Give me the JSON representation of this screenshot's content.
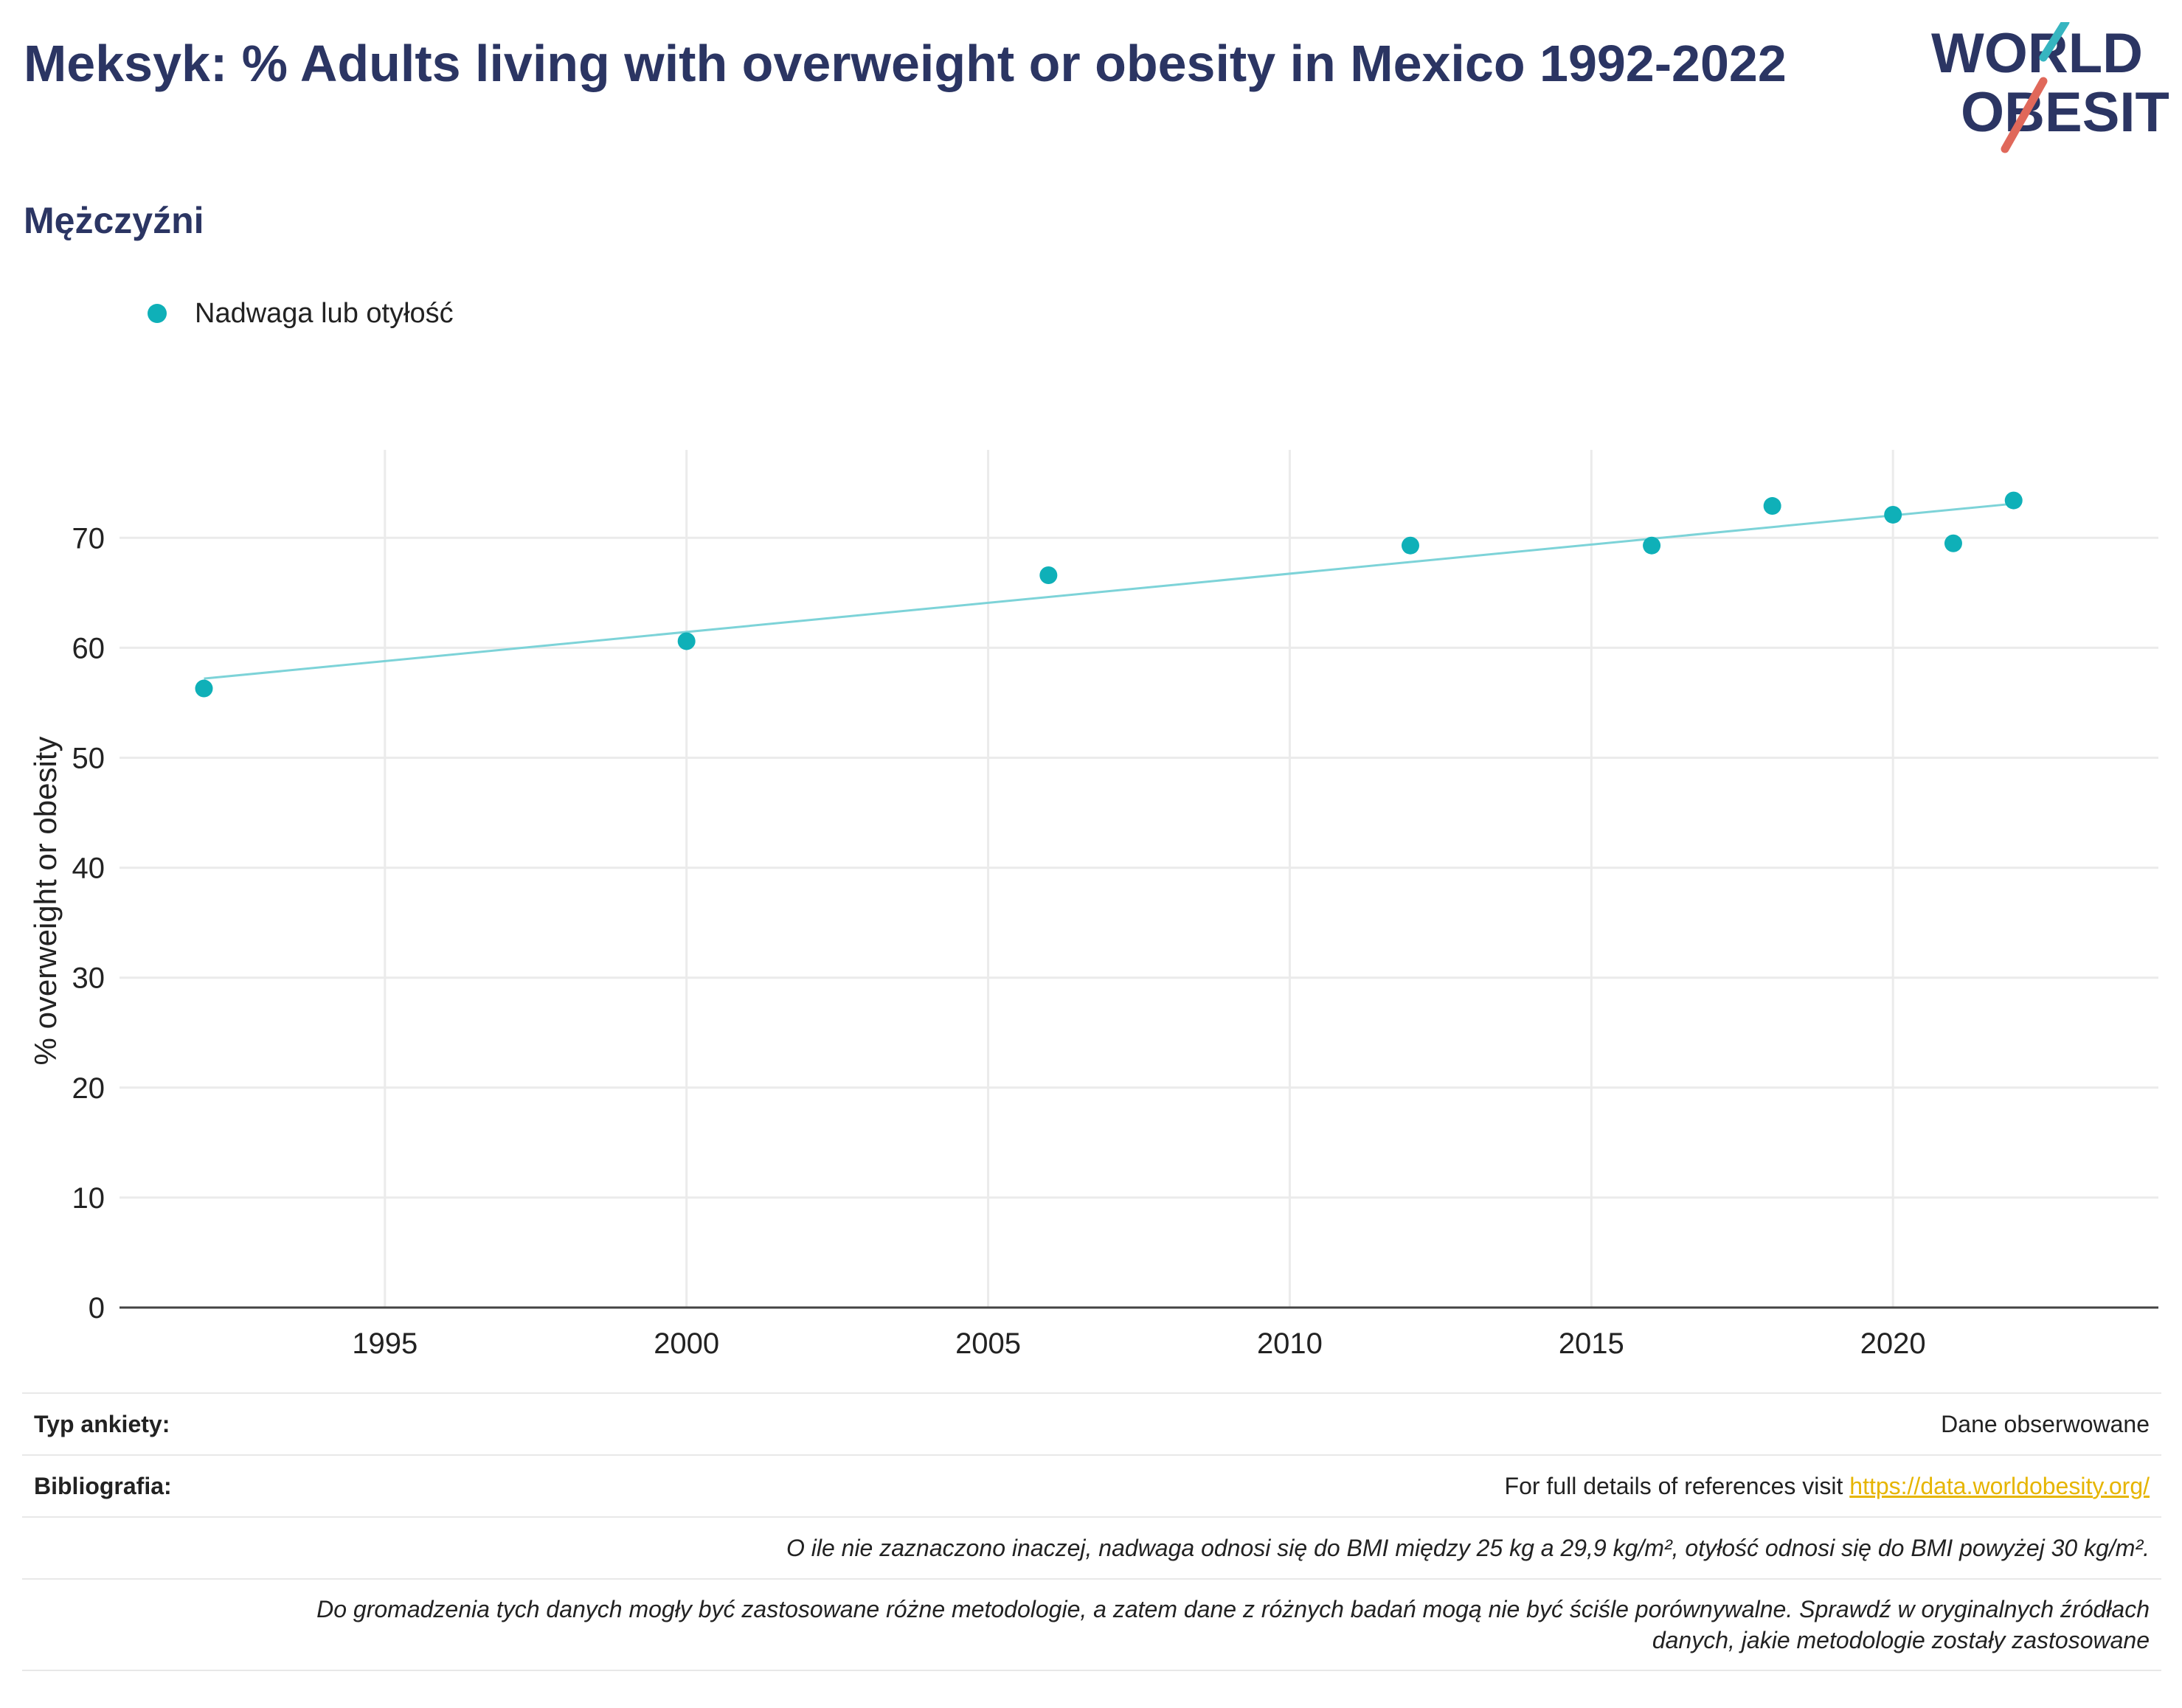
{
  "header": {
    "title": "Meksyk: % Adults living with overweight or obesity in Mexico 1992-2022",
    "subtitle": "Mężczyźni"
  },
  "logo": {
    "line1": "WORLD",
    "line2": "OBESITY",
    "accent_color": "#e0685a",
    "accent_color_2": "#36b5c0"
  },
  "legend": {
    "label": "Nadwaga lub otyłość",
    "color": "#0fb0b8"
  },
  "chart_data": {
    "type": "scatter",
    "title": "",
    "xlabel": "",
    "ylabel": "% overweight or obesity",
    "xlim": [
      1990.6,
      2024.4
    ],
    "ylim": [
      0,
      78
    ],
    "xticks": [
      1995,
      2000,
      2005,
      2010,
      2015,
      2020
    ],
    "yticks": [
      0,
      10,
      20,
      30,
      40,
      50,
      60,
      70
    ],
    "grid": true,
    "legend_position": "top-left",
    "series": [
      {
        "name": "Nadwaga lub otyłość",
        "color": "#0fb0b8",
        "x": [
          1992,
          2000,
          2006,
          2012,
          2016,
          2018,
          2020,
          2021,
          2022
        ],
        "y": [
          56.3,
          60.6,
          66.6,
          69.3,
          69.3,
          72.9,
          72.1,
          69.5,
          73.4
        ]
      }
    ],
    "trendline": {
      "color": "#7dd3d8",
      "x": [
        1992,
        2022
      ],
      "y": [
        57.2,
        73.1
      ]
    }
  },
  "footer": {
    "survey_label": "Typ ankiety:",
    "survey_value": "Dane obserwowane",
    "bib_label": "Bibliografia:",
    "bib_text": "For full details of references visit ",
    "bib_link": "https://data.worldobesity.org/",
    "note1": "O ile nie zaznaczono inaczej, nadwaga odnosi się do BMI między 25 kg a 29,9 kg/m², otyłość odnosi się do BMI powyżej 30 kg/m².",
    "note2_line1": "Do gromadzenia tych danych mogły być zastosowane różne metodologie, a zatem dane z różnych badań mogą nie być ściśle porównywalne. Sprawdź w oryginalnych źródłach",
    "note2_line2": "danych, jakie metodologie zostały zastosowane"
  }
}
